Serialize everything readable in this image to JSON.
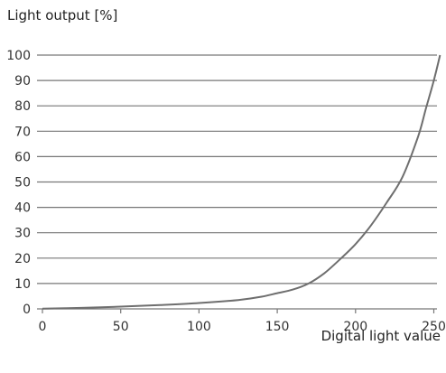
{
  "chart_data": {
    "type": "line",
    "ylabel": "Light output [%]",
    "xlabel": "Digital light value",
    "xlim": [
      0,
      255
    ],
    "ylim": [
      0,
      100
    ],
    "x_ticks": [
      0,
      50,
      100,
      150,
      200,
      250
    ],
    "y_ticks": [
      0,
      10,
      20,
      30,
      40,
      50,
      60,
      70,
      80,
      90,
      100
    ],
    "grid": "horizontal",
    "series": [
      {
        "color": "#6e6e6e",
        "x": [
          0,
          25,
          50,
          75,
          100,
          125,
          140,
          150,
          160,
          170,
          180,
          190,
          200,
          210,
          220,
          230,
          240,
          245,
          250,
          254
        ],
        "y": [
          0.1,
          0.4,
          0.9,
          1.5,
          2.3,
          3.5,
          4.8,
          6.2,
          7.6,
          10,
          14,
          19.5,
          25.5,
          33,
          42,
          52,
          68,
          79,
          90,
          100
        ]
      }
    ]
  }
}
